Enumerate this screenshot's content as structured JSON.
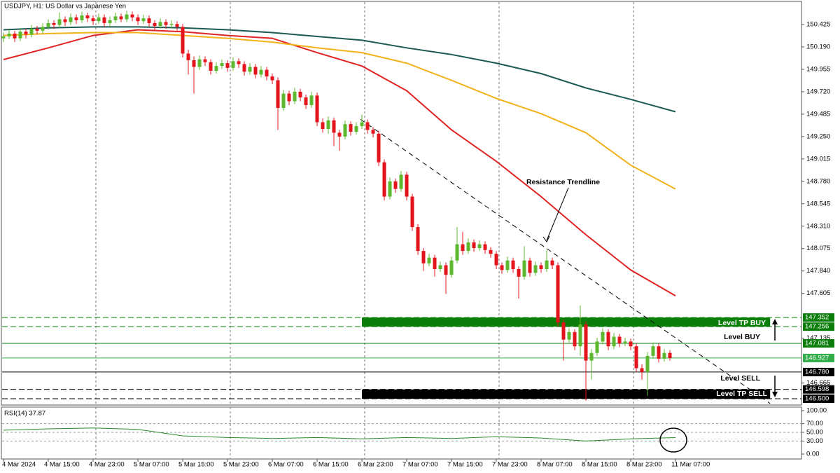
{
  "chart_data": {
    "type": "candlestick",
    "title": "USDJPY, H1:  US Dollar vs Japanese Yen",
    "up_color": "#5cb82e",
    "down_color": "#e3141c",
    "xlim": [
      -0.625,
      142.5
    ],
    "ylim": [
      146.434,
      150.682
    ],
    "xticks": [
      {
        "value": 0,
        "label": "4 Mar 2024"
      },
      {
        "value": 8,
        "label": "4 Mar 15:00"
      },
      {
        "value": 16,
        "label": "4 Mar 23:00"
      },
      {
        "value": 24,
        "label": "5 Mar 07:00"
      },
      {
        "value": 32,
        "label": "5 Mar 15:00"
      },
      {
        "value": 40,
        "label": "5 Mar 23:00"
      },
      {
        "value": 48,
        "label": "6 Mar 07:00"
      },
      {
        "value": 56,
        "label": "6 Mar 15:00"
      },
      {
        "value": 64,
        "label": "6 Mar 23:00"
      },
      {
        "value": 72,
        "label": "7 Mar 07:00"
      },
      {
        "value": 80,
        "label": "7 Mar 15:00"
      },
      {
        "value": 88,
        "label": "7 Mar 23:00"
      },
      {
        "value": 96,
        "label": "8 Mar 07:00"
      },
      {
        "value": 104,
        "label": "8 Mar 15:00"
      },
      {
        "value": 112,
        "label": "8 Mar 23:00"
      },
      {
        "value": 120,
        "label": "11 Mar 07:00"
      }
    ],
    "yticks": [
      150.425,
      {
        "value": 150.19,
        "label": "150.190"
      },
      149.955,
      {
        "value": 149.72,
        "label": "149.720"
      },
      149.485,
      {
        "value": 149.25,
        "label": "149.250"
      },
      149.015,
      {
        "value": 148.78,
        "label": "148.780"
      },
      148.545,
      {
        "value": 148.31,
        "label": "148.310"
      },
      148.075,
      {
        "value": 147.84,
        "label": "147.840"
      },
      147.605,
      147.135,
      146.665
    ],
    "candles": [
      [
        150.28,
        150.34,
        150.24,
        150.3
      ],
      [
        150.3,
        150.37,
        150.27,
        150.33
      ],
      [
        150.33,
        150.36,
        150.24,
        150.28
      ],
      [
        150.28,
        150.39,
        150.25,
        150.35
      ],
      [
        150.35,
        150.38,
        150.28,
        150.32
      ],
      [
        150.32,
        150.42,
        150.29,
        150.38
      ],
      [
        150.38,
        150.41,
        150.32,
        150.36
      ],
      [
        150.36,
        150.44,
        150.33,
        150.4
      ],
      [
        150.4,
        150.48,
        150.37,
        150.44
      ],
      [
        150.44,
        150.47,
        150.38,
        150.42
      ],
      [
        150.42,
        150.55,
        150.39,
        150.48
      ],
      [
        150.48,
        150.51,
        150.41,
        150.45
      ],
      [
        150.45,
        150.54,
        150.42,
        150.5
      ],
      [
        150.5,
        150.53,
        150.43,
        150.47
      ],
      [
        150.47,
        150.56,
        150.44,
        150.52
      ],
      [
        150.52,
        150.55,
        150.45,
        150.49
      ],
      [
        150.49,
        150.52,
        150.42,
        150.46
      ],
      [
        150.46,
        150.54,
        150.43,
        150.5
      ],
      [
        150.5,
        150.53,
        150.4,
        150.44
      ],
      [
        150.44,
        150.51,
        150.41,
        150.47
      ],
      [
        150.47,
        150.55,
        150.44,
        150.51
      ],
      [
        150.51,
        150.54,
        150.45,
        150.48
      ],
      [
        150.48,
        150.57,
        150.45,
        150.53
      ],
      [
        150.53,
        150.56,
        150.46,
        150.5
      ],
      [
        150.5,
        150.53,
        150.42,
        150.46
      ],
      [
        150.46,
        150.53,
        150.43,
        150.49
      ],
      [
        150.49,
        150.52,
        150.4,
        150.44
      ],
      [
        150.44,
        150.47,
        150.37,
        150.41
      ],
      [
        150.41,
        150.49,
        150.38,
        150.45
      ],
      [
        150.45,
        150.48,
        150.38,
        150.42
      ],
      [
        150.42,
        150.47,
        150.39,
        150.43
      ],
      [
        150.43,
        150.46,
        150.36,
        150.4
      ],
      [
        150.4,
        150.43,
        150.08,
        150.12
      ],
      [
        150.12,
        150.16,
        149.9,
        150.05
      ],
      [
        150.05,
        150.09,
        149.7,
        149.98
      ],
      [
        149.98,
        150.1,
        149.95,
        150.06
      ],
      [
        150.06,
        150.09,
        149.99,
        150.03
      ],
      [
        150.03,
        150.06,
        149.9,
        149.94
      ],
      [
        149.94,
        150.03,
        149.91,
        149.99
      ],
      [
        149.99,
        150.06,
        149.96,
        150.02
      ],
      [
        150.02,
        150.05,
        149.93,
        149.97
      ],
      [
        149.97,
        150.08,
        149.94,
        150.04
      ],
      [
        150.04,
        150.07,
        149.97,
        150.01
      ],
      [
        150.01,
        150.04,
        149.89,
        149.93
      ],
      [
        149.93,
        150.02,
        149.9,
        149.98
      ],
      [
        149.98,
        150.01,
        149.86,
        149.9
      ],
      [
        149.9,
        149.99,
        149.87,
        149.95
      ],
      [
        149.95,
        149.98,
        149.84,
        149.88
      ],
      [
        149.88,
        149.91,
        149.8,
        149.84
      ],
      [
        149.84,
        149.87,
        149.32,
        149.55
      ],
      [
        149.55,
        149.74,
        149.52,
        149.7
      ],
      [
        149.7,
        149.73,
        149.58,
        149.62
      ],
      [
        149.62,
        149.76,
        149.59,
        149.72
      ],
      [
        149.72,
        149.75,
        149.62,
        149.66
      ],
      [
        149.66,
        149.69,
        149.54,
        149.58
      ],
      [
        149.58,
        149.72,
        149.55,
        149.68
      ],
      [
        149.68,
        149.71,
        149.36,
        149.4
      ],
      [
        149.4,
        149.44,
        149.29,
        149.33
      ],
      [
        149.33,
        149.46,
        149.28,
        149.42
      ],
      [
        149.42,
        149.45,
        149.15,
        149.29
      ],
      [
        149.29,
        149.32,
        149.1,
        149.25
      ],
      [
        149.25,
        149.42,
        149.22,
        149.38
      ],
      [
        149.38,
        149.41,
        149.26,
        149.3
      ],
      [
        149.3,
        149.4,
        149.27,
        149.36
      ],
      [
        149.36,
        149.48,
        149.33,
        149.4
      ],
      [
        149.4,
        149.43,
        149.28,
        149.32
      ],
      [
        149.32,
        149.35,
        149.24,
        149.28
      ],
      [
        149.28,
        149.31,
        148.94,
        148.98
      ],
      [
        148.98,
        149.01,
        148.58,
        148.62
      ],
      [
        148.62,
        148.82,
        148.59,
        148.78
      ],
      [
        148.78,
        148.81,
        148.66,
        148.7
      ],
      [
        148.7,
        148.89,
        148.67,
        148.85
      ],
      [
        148.85,
        148.88,
        148.58,
        148.62
      ],
      [
        148.62,
        148.65,
        148.26,
        148.3
      ],
      [
        148.3,
        148.33,
        148.01,
        148.05
      ],
      [
        148.05,
        148.08,
        147.84,
        147.92
      ],
      [
        147.92,
        148.02,
        147.89,
        147.98
      ],
      [
        147.98,
        148.01,
        147.78,
        147.86
      ],
      [
        147.86,
        147.94,
        147.83,
        147.9
      ],
      [
        147.9,
        147.93,
        147.6,
        147.8
      ],
      [
        147.8,
        147.99,
        147.77,
        147.95
      ],
      [
        147.95,
        148.3,
        147.92,
        148.12
      ],
      [
        148.12,
        148.25,
        148.01,
        148.05
      ],
      [
        148.05,
        148.18,
        148.02,
        148.14
      ],
      [
        148.14,
        148.17,
        148.04,
        148.08
      ],
      [
        148.08,
        148.16,
        148.05,
        148.12
      ],
      [
        148.12,
        148.15,
        148.02,
        148.06
      ],
      [
        148.06,
        148.09,
        147.98,
        148.02
      ],
      [
        148.02,
        148.05,
        147.86,
        147.9
      ],
      [
        147.9,
        147.93,
        147.81,
        147.85
      ],
      [
        147.85,
        147.99,
        147.82,
        147.95
      ],
      [
        147.95,
        147.98,
        147.82,
        147.86
      ],
      [
        147.86,
        147.89,
        147.55,
        147.78
      ],
      [
        147.78,
        148.1,
        147.75,
        147.95
      ],
      [
        147.95,
        147.98,
        147.78,
        147.82
      ],
      [
        147.82,
        147.94,
        147.79,
        147.9
      ],
      [
        147.9,
        147.93,
        147.82,
        147.86
      ],
      [
        147.86,
        148.06,
        147.83,
        147.95
      ],
      [
        147.95,
        147.98,
        147.86,
        147.9
      ],
      [
        147.9,
        147.93,
        147.26,
        147.3
      ],
      [
        147.3,
        147.33,
        146.9,
        147.12
      ],
      [
        147.12,
        147.24,
        147.09,
        147.2
      ],
      [
        147.2,
        147.23,
        147.01,
        147.05
      ],
      [
        147.05,
        147.48,
        146.95,
        147.28
      ],
      [
        147.28,
        147.31,
        146.48,
        146.9
      ],
      [
        146.9,
        147.02,
        146.7,
        146.98
      ],
      [
        146.98,
        147.14,
        146.95,
        147.1
      ],
      [
        147.1,
        147.24,
        147.07,
        147.2
      ],
      [
        147.2,
        147.23,
        147.01,
        147.05
      ],
      [
        147.05,
        147.19,
        147.02,
        147.15
      ],
      [
        147.15,
        147.18,
        147.04,
        147.08
      ],
      [
        147.08,
        147.14,
        147.05,
        147.1
      ],
      [
        147.1,
        147.13,
        147.01,
        147.05
      ],
      [
        147.05,
        147.08,
        146.78,
        146.82
      ],
      [
        146.82,
        146.86,
        146.7,
        146.78
      ],
      [
        146.78,
        146.99,
        146.53,
        146.95
      ],
      [
        146.95,
        147.09,
        146.92,
        147.05
      ],
      [
        147.05,
        147.08,
        146.88,
        146.92
      ],
      [
        146.92,
        147.02,
        146.89,
        146.98
      ],
      [
        146.98,
        147.01,
        146.9,
        146.927
      ]
    ],
    "ma_x": [
      0,
      8,
      16,
      24,
      32,
      40,
      48,
      56,
      64,
      72,
      80,
      88,
      96,
      104,
      112,
      120
    ],
    "series": [
      {
        "color": "#e02424",
        "values": [
          150.057,
          150.18,
          150.31,
          150.37,
          150.35,
          150.31,
          150.28,
          150.13,
          149.99,
          149.73,
          149.32,
          148.99,
          148.62,
          148.22,
          147.85,
          147.58
        ]
      },
      {
        "color": "#f2b21c",
        "values": [
          150.31,
          150.33,
          150.34,
          150.34,
          150.31,
          150.28,
          150.24,
          150.18,
          150.13,
          150.02,
          149.84,
          149.65,
          149.49,
          149.29,
          148.95,
          148.7
        ]
      },
      {
        "color": "#1c5a52",
        "values": [
          150.37,
          150.39,
          150.4,
          150.4,
          150.39,
          150.37,
          150.34,
          150.3,
          150.26,
          150.18,
          150.11,
          150.02,
          149.91,
          149.76,
          149.64,
          149.51
        ]
      }
    ],
    "levels": [
      {
        "value": 147.352,
        "label": "147.352",
        "color": "#0a7d0a",
        "dash": true
      },
      {
        "value": 147.256,
        "label": "147.256",
        "color": "#0a7d0a",
        "dash": true
      },
      {
        "value": 147.081,
        "label": "147.081",
        "color": "#0a7d0a",
        "dash": false
      },
      {
        "value": 146.927,
        "label": "146.927",
        "color": "#2fae4a",
        "dash": false
      },
      {
        "value": 146.78,
        "label": "146.780",
        "color": "#000000",
        "dash": false
      },
      {
        "value": 146.598,
        "label": "146.598",
        "color": "#000000",
        "dash": true
      },
      {
        "value": 146.5,
        "label": "146.500",
        "color": "#000000",
        "dash": true
      }
    ],
    "zones": [
      {
        "x": [
          64,
          136.9
        ],
        "y": [
          147.256,
          147.352
        ],
        "color": "#0a7d0a"
      },
      {
        "x": [
          64,
          136.9
        ],
        "y": [
          146.5,
          146.598
        ],
        "color": "#000000"
      }
    ],
    "trendline": {
      "x": [
        63.75,
        136.9
      ],
      "y": [
        149.43,
        146.45
      ]
    },
    "annotations": [
      "Resistance Trendline",
      "Level TP BUY",
      "Level BUY",
      "Level SELL",
      "Level TP SELL"
    ],
    "rsi": {
      "title": "RSI(14) 37.87",
      "color": "#2a8a2a",
      "ylim": [
        -11.29,
        108.06
      ],
      "yticks": [
        {
          "value": 100,
          "label": "100.00"
        },
        {
          "value": 70,
          "label": "70.00"
        },
        {
          "value": 50,
          "label": "50.00"
        },
        {
          "value": 30,
          "label": "30.00"
        },
        {
          "value": 0,
          "label": "0.00"
        }
      ],
      "values": [
        55,
        58,
        60,
        57,
        42,
        38,
        36,
        38,
        35,
        38,
        36,
        40,
        37,
        30,
        35,
        37.87
      ]
    }
  }
}
